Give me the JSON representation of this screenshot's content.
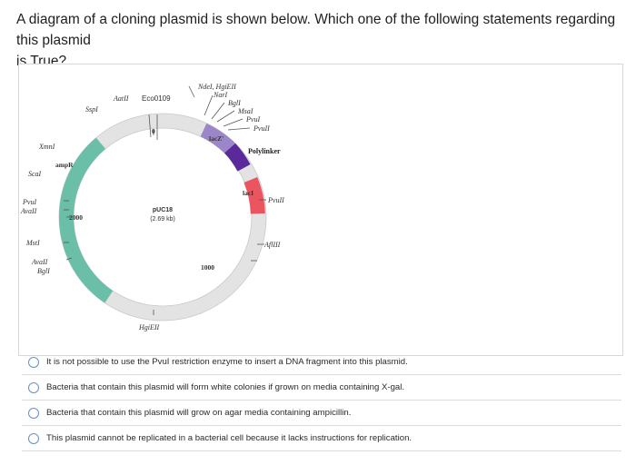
{
  "question": {
    "line1": "A diagram of a cloning plasmid is shown below. Which one of the following statements regarding this plasmid",
    "line2": "is True?"
  },
  "diagram": {
    "plasmid_name": "pUC18",
    "plasmid_size": "(2.69 kb)",
    "labels": {
      "aatII": "AatII",
      "eco0109": "Eco0109",
      "sspI": "SspI",
      "zero": "0",
      "ndeI_hgiEII": "NdeI, HgiEII",
      "narI": "NarI",
      "bglI_top": "BglI",
      "msaI": "MsaI",
      "pvuI_top": "PvuI",
      "pvuII_top": "PvuII",
      "lacZ": "lacZ'",
      "polylinker": "Polylinker",
      "xmnI": "XmnI",
      "ampR": "ampR",
      "scaI": "ScaI",
      "pvuI_left": "PvuI",
      "avaII_left": "AvaII",
      "n2000": "2000",
      "mstI": "MstI",
      "avaII_low": "AvaII",
      "bglI_low": "BglI",
      "lacI": "lacI",
      "pvuII_right": "PvuII",
      "aflIII": "AflIII",
      "n1000": "1000",
      "hgiEII_bottom": "HgiEII"
    },
    "colors": {
      "ring": "#e3e3e3",
      "amp": "#6bbfa8",
      "lacZ": "#9b86c9",
      "polylinker": "#5a2a9a",
      "lacI": "#ea5560"
    }
  },
  "options": [
    {
      "label": "It is not possible to use the PvuI restriction enzyme to insert a DNA fragment into this plasmid.",
      "selected": false
    },
    {
      "label": "Bacteria that contain this plasmid will form white colonies if grown on media containing X-gal.",
      "selected": false
    },
    {
      "label": "Bacteria that contain this plasmid will grow on agar media containing ampicillin.",
      "selected": false
    },
    {
      "label": "This plasmid cannot be replicated in a bacterial cell because it lacks instructions for replication.",
      "selected": false
    }
  ]
}
